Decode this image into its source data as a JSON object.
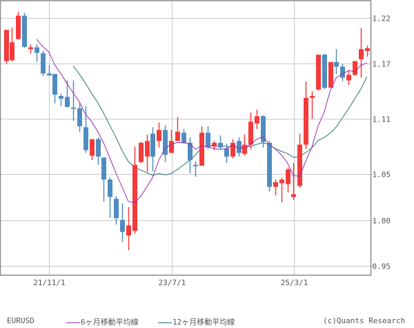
{
  "chart_data": {
    "type": "candlestick",
    "title": "EURUSD",
    "xlabel": "",
    "ylabel": "",
    "ylim": [
      0.937,
      1.239
    ],
    "y_ticks": [
      1.22,
      1.17,
      1.11,
      1.05,
      1.0,
      0.95
    ],
    "y_tick_labels": [
      "1.22",
      "1.17",
      "1.11",
      "1.05",
      "1.00",
      "0.95"
    ],
    "x_tick_labels": [
      {
        "label": "21/11/1",
        "index": 8
      },
      {
        "label": "23/7/1",
        "index": 28
      },
      {
        "label": "25/3/1",
        "index": 48
      }
    ],
    "grid": true,
    "colors": {
      "up": "#f43a3a",
      "down": "#4f8cc0",
      "ma6": "#9a27b0",
      "ma12": "#22736e",
      "grid": "#c8c8c8",
      "frame": "#888888",
      "text": "#555555"
    },
    "candles": [
      {
        "o": 1.173,
        "h": 1.1995,
        "l": 1.17,
        "c": 1.207
      },
      {
        "o": 1.174,
        "h": 1.2095,
        "l": 1.1725,
        "c": 1.1935
      },
      {
        "o": 1.197,
        "h": 1.2266,
        "l": 1.1965,
        "c": 1.2225
      },
      {
        "o": 1.2225,
        "h": 1.2255,
        "l": 1.1875,
        "c": 1.1885
      },
      {
        "o": 1.186,
        "h": 1.191,
        "l": 1.181,
        "c": 1.188
      },
      {
        "o": 1.188,
        "h": 1.1915,
        "l": 1.172,
        "c": 1.182
      },
      {
        "o": 1.1815,
        "h": 1.184,
        "l": 1.157,
        "c": 1.1595
      },
      {
        "o": 1.1595,
        "h": 1.1685,
        "l": 1.1565,
        "c": 1.1575
      },
      {
        "o": 1.159,
        "h": 1.159,
        "l": 1.127,
        "c": 1.1365
      },
      {
        "o": 1.135,
        "h": 1.1375,
        "l": 1.124,
        "c": 1.132
      },
      {
        "o": 1.134,
        "h": 1.152,
        "l": 1.125,
        "c": 1.123
      },
      {
        "o": 1.1225,
        "h": 1.152,
        "l": 1.108,
        "c": 1.1215
      },
      {
        "o": 1.1215,
        "h": 1.127,
        "l": 1.096,
        "c": 1.102
      },
      {
        "o": 1.101,
        "h": 1.124,
        "l": 1.073,
        "c": 1.076
      },
      {
        "o": 1.07,
        "h": 1.083,
        "l": 1.065,
        "c": 1.088
      },
      {
        "o": 1.088,
        "h": 1.09,
        "l": 1.06,
        "c": 1.069
      },
      {
        "o": 1.068,
        "h": 1.068,
        "l": 1.02,
        "c": 1.044
      },
      {
        "o": 1.044,
        "h": 1.046,
        "l": 1.002,
        "c": 1.025
      },
      {
        "o": 1.023,
        "h": 1.026,
        "l": 0.995,
        "c": 1.002
      },
      {
        "o": 1.0,
        "h": 1.018,
        "l": 0.976,
        "c": 0.987
      },
      {
        "o": 0.983,
        "h": 1.014,
        "l": 0.967,
        "c": 0.994
      },
      {
        "o": 0.988,
        "h": 1.08,
        "l": 0.985,
        "c": 1.06
      },
      {
        "o": 1.063,
        "h": 1.085,
        "l": 1.062,
        "c": 1.084
      },
      {
        "o": 1.069,
        "h": 1.093,
        "l": 1.052,
        "c": 1.086
      },
      {
        "o": 1.094,
        "h": 1.101,
        "l": 1.053,
        "c": 1.069
      },
      {
        "o": 1.086,
        "h": 1.106,
        "l": 1.079,
        "c": 1.098
      },
      {
        "o": 1.098,
        "h": 1.103,
        "l": 1.063,
        "c": 1.071
      },
      {
        "o": 1.073,
        "h": 1.098,
        "l": 1.073,
        "c": 1.086
      },
      {
        "o": 1.086,
        "h": 1.112,
        "l": 1.086,
        "c": 1.096
      },
      {
        "o": 1.095,
        "h": 1.099,
        "l": 1.083,
        "c": 1.084
      },
      {
        "o": 1.084,
        "h": 1.09,
        "l": 1.051,
        "c": 1.065
      },
      {
        "o": 1.06,
        "h": 1.064,
        "l": 1.047,
        "c": 1.059
      },
      {
        "o": 1.059,
        "h": 1.102,
        "l": 1.059,
        "c": 1.095
      },
      {
        "o": 1.095,
        "h": 1.102,
        "l": 1.077,
        "c": 1.079
      },
      {
        "o": 1.08,
        "h": 1.086,
        "l": 1.076,
        "c": 1.084
      },
      {
        "o": 1.084,
        "h": 1.092,
        "l": 1.077,
        "c": 1.079
      },
      {
        "o": 1.078,
        "h": 1.083,
        "l": 1.062,
        "c": 1.069
      },
      {
        "o": 1.069,
        "h": 1.088,
        "l": 1.067,
        "c": 1.084
      },
      {
        "o": 1.086,
        "h": 1.09,
        "l": 1.069,
        "c": 1.073
      },
      {
        "o": 1.072,
        "h": 1.093,
        "l": 1.07,
        "c": 1.082
      },
      {
        "o": 1.082,
        "h": 1.117,
        "l": 1.077,
        "c": 1.107
      },
      {
        "o": 1.105,
        "h": 1.12,
        "l": 1.099,
        "c": 1.113
      },
      {
        "o": 1.113,
        "h": 1.114,
        "l": 1.079,
        "c": 1.085
      },
      {
        "o": 1.084,
        "h": 1.086,
        "l": 1.031,
        "c": 1.036
      },
      {
        "o": 1.036,
        "h": 1.044,
        "l": 1.027,
        "c": 1.041
      },
      {
        "o": 1.04,
        "h": 1.046,
        "l": 1.019,
        "c": 1.044
      },
      {
        "o": 1.039,
        "h": 1.057,
        "l": 1.03,
        "c": 1.055
      },
      {
        "o": 1.025,
        "h": 1.062,
        "l": 1.022,
        "c": 1.028
      },
      {
        "o": 1.037,
        "h": 1.094,
        "l": 1.035,
        "c": 1.082
      },
      {
        "o": 1.082,
        "h": 1.151,
        "l": 1.077,
        "c": 1.133
      },
      {
        "o": 1.133,
        "h": 1.14,
        "l": 1.11,
        "c": 1.135
      },
      {
        "o": 1.142,
        "h": 1.177,
        "l": 1.141,
        "c": 1.18
      },
      {
        "o": 1.18,
        "h": 1.181,
        "l": 1.142,
        "c": 1.144
      },
      {
        "o": 1.144,
        "h": 1.172,
        "l": 1.145,
        "c": 1.172
      },
      {
        "o": 1.172,
        "h": 1.186,
        "l": 1.159,
        "c": 1.167
      },
      {
        "o": 1.167,
        "h": 1.17,
        "l": 1.151,
        "c": 1.155
      },
      {
        "o": 1.152,
        "h": 1.163,
        "l": 1.147,
        "c": 1.158
      },
      {
        "o": 1.158,
        "h": 1.172,
        "l": 1.157,
        "c": 1.173
      },
      {
        "o": 1.175,
        "h": 1.209,
        "l": 1.155,
        "c": 1.186
      },
      {
        "o": 1.184,
        "h": 1.19,
        "l": 1.178,
        "c": 1.187
      }
    ],
    "series": [
      {
        "name": "6ヶ月移動平均線",
        "color": "#9a27b0"
      },
      {
        "name": "12ヶ月移動平均線",
        "color": "#22736e"
      }
    ],
    "legend_position": "bottom"
  },
  "legend": {
    "symbol": "EURUSD",
    "ma6_label": "6ヶ月移動平均線",
    "ma12_label": "12ヶ月移動平均線",
    "copyright": "(c)Quants Research"
  }
}
